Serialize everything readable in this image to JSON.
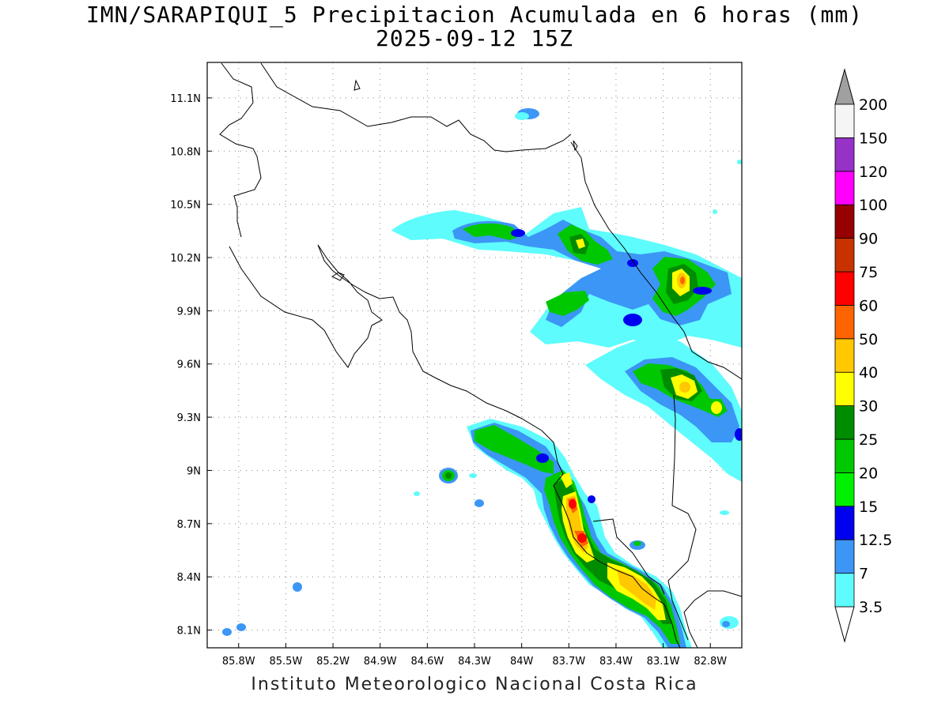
{
  "title": {
    "line1": "IMN/SARAPIQUI_5 Precipitacion Acumulada en 6 horas (mm)",
    "line2": "2025-09-12 15Z"
  },
  "footer": "Instituto Meteorologico Nacional Costa Rica",
  "map": {
    "lon_range": [
      -86.0,
      -82.6
    ],
    "lat_range": [
      8.0,
      11.3
    ],
    "grid": true,
    "lat_ticks": [
      {
        "value": 11.1,
        "label": "11.1N"
      },
      {
        "value": 10.8,
        "label": "10.8N"
      },
      {
        "value": 10.5,
        "label": "10.5N"
      },
      {
        "value": 10.2,
        "label": "10.2N"
      },
      {
        "value": 9.9,
        "label": "9.9N"
      },
      {
        "value": 9.6,
        "label": "9.6N"
      },
      {
        "value": 9.3,
        "label": "9.3N"
      },
      {
        "value": 9.0,
        "label": "9N"
      },
      {
        "value": 8.7,
        "label": "8.7N"
      },
      {
        "value": 8.4,
        "label": "8.4N"
      },
      {
        "value": 8.1,
        "label": "8.1N"
      }
    ],
    "lon_ticks": [
      {
        "value": -85.8,
        "label": "85.8W"
      },
      {
        "value": -85.5,
        "label": "85.5W"
      },
      {
        "value": -85.2,
        "label": "85.2W"
      },
      {
        "value": -84.9,
        "label": "84.9W"
      },
      {
        "value": -84.6,
        "label": "84.6W"
      },
      {
        "value": -84.3,
        "label": "84.3W"
      },
      {
        "value": -84.0,
        "label": "84W"
      },
      {
        "value": -83.7,
        "label": "83.7W"
      },
      {
        "value": -83.4,
        "label": "83.4W"
      },
      {
        "value": -83.1,
        "label": "83.1W"
      },
      {
        "value": -82.8,
        "label": "82.8W"
      }
    ]
  },
  "colorbar": {
    "levels": [
      "3.5",
      "7",
      "12.5",
      "15",
      "20",
      "25",
      "30",
      "40",
      "50",
      "60",
      "75",
      "90",
      "100",
      "120",
      "150",
      "200"
    ],
    "colors": [
      "#5efcfc",
      "#3c96f5",
      "#0000f0",
      "#00f000",
      "#00c800",
      "#008c00",
      "#ffff00",
      "#ffc800",
      "#ff6400",
      "#ff0000",
      "#c83200",
      "#960000",
      "#ff00ff",
      "#9632c8",
      "#f5f5f5"
    ],
    "over_color": "#a0a0a0",
    "under_color": "#ffffff"
  },
  "rain_cells": [
    {
      "lon": -84.2,
      "lat": 10.37,
      "category": 4
    },
    {
      "lon": -83.58,
      "lat": 10.27,
      "category": 4
    },
    {
      "lon": -82.98,
      "lat": 10.05,
      "category": 8
    },
    {
      "lon": -83.0,
      "lat": 9.5,
      "category": 7
    },
    {
      "lon": -84.1,
      "lat": 9.15,
      "category": 5
    },
    {
      "lon": -83.62,
      "lat": 8.79,
      "category": 10
    },
    {
      "lon": -83.57,
      "lat": 8.6,
      "category": 10
    },
    {
      "lon": -83.4,
      "lat": 8.41,
      "category": 8
    },
    {
      "lon": -83.12,
      "lat": 8.2,
      "category": 8
    },
    {
      "lon": -84.42,
      "lat": 8.97,
      "category": 5
    }
  ]
}
